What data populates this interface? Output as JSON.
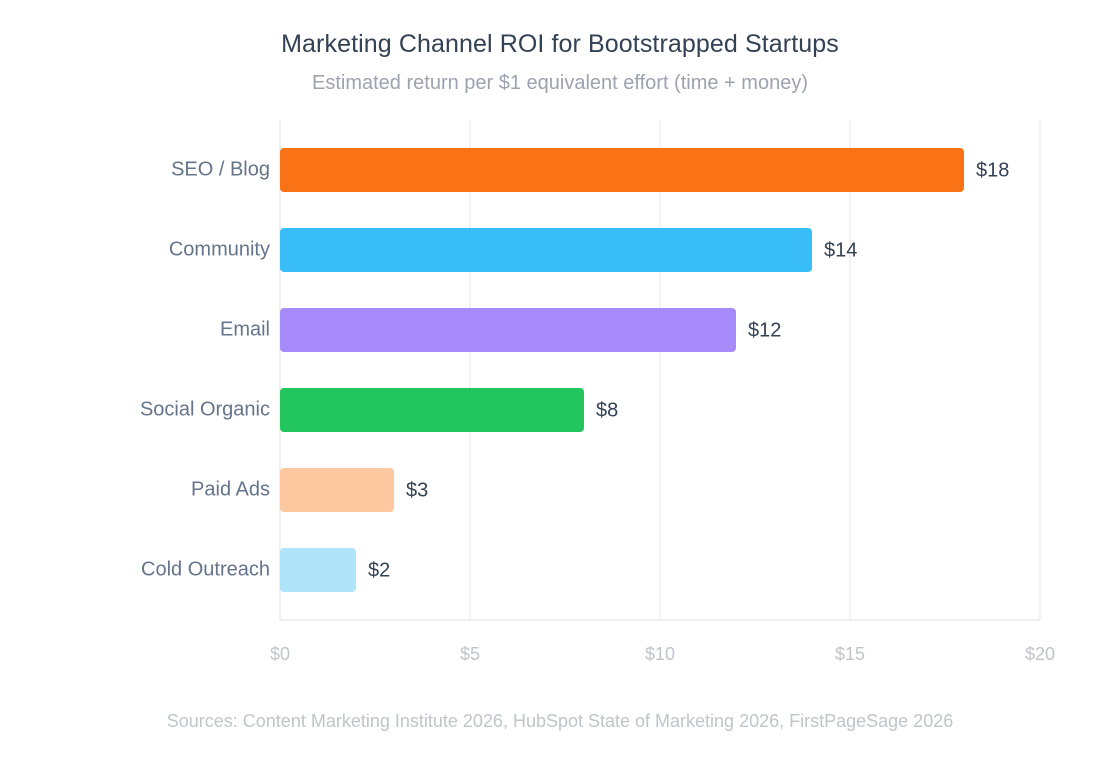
{
  "chart_data": {
    "type": "bar",
    "orientation": "horizontal",
    "title": "Marketing Channel ROI for Bootstrapped Startups",
    "subtitle": "Estimated return per $1 equivalent effort (time + money)",
    "xlabel": "",
    "ylabel": "",
    "categories": [
      "SEO / Blog",
      "Community",
      "Email",
      "Social Organic",
      "Paid Ads",
      "Cold Outreach"
    ],
    "values": [
      18,
      14,
      12,
      8,
      3,
      2
    ],
    "value_labels": [
      "$18",
      "$14",
      "$12",
      "$8",
      "$3",
      "$2"
    ],
    "colors": [
      "#f97316",
      "#38bdf8",
      "#a78bfa",
      "#22c55e",
      "#fdc8a0",
      "#b0e4fa"
    ],
    "xlim": [
      0,
      20
    ],
    "ticks": [
      0,
      5,
      10,
      15,
      20
    ],
    "tick_labels": [
      "$0",
      "$5",
      "$10",
      "$15",
      "$20"
    ],
    "grid": true,
    "source": "Sources: Content Marketing Institute 2026, HubSpot State of Marketing 2026, FirstPageSage 2026"
  }
}
